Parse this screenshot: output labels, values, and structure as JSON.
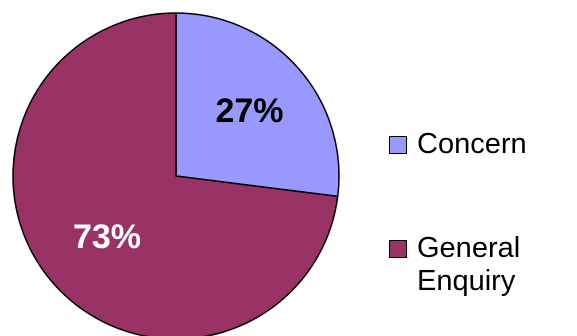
{
  "chart_data": {
    "type": "pie",
    "title": "",
    "slices": [
      {
        "name": "Concern",
        "value": 27,
        "label": "27%",
        "color": "#9999ff",
        "label_color": "#000000"
      },
      {
        "name": "General Enquiry",
        "value": 73,
        "label": "73%",
        "color": "#993366",
        "label_color": "#ffffff"
      }
    ],
    "legend_position": "right",
    "start_angle_deg": 0,
    "direction": "clockwise"
  },
  "legend": {
    "items": [
      {
        "label": "Concern",
        "color": "#9999ff"
      },
      {
        "label": "General Enquiry",
        "color": "#993366"
      }
    ]
  }
}
